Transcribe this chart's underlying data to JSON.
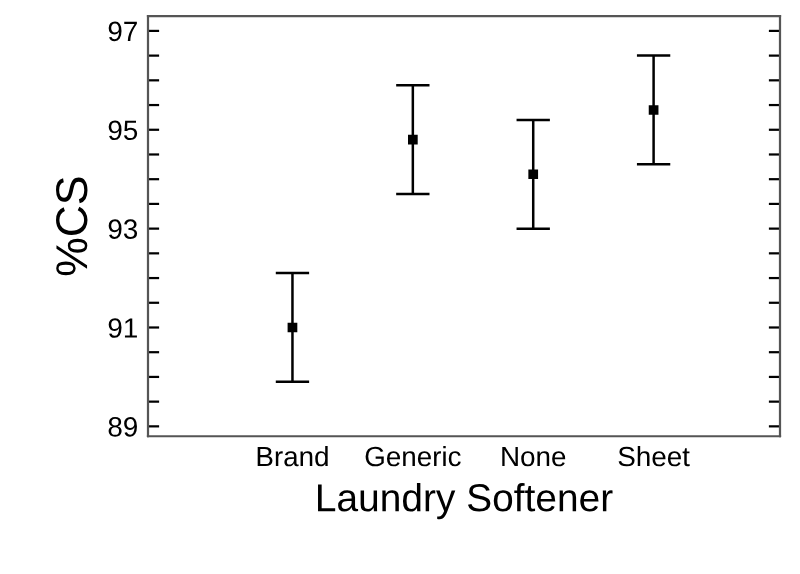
{
  "chart_data": {
    "type": "scatter",
    "xlabel": "Laundry Softener",
    "ylabel": "%CS",
    "categories": [
      "Brand",
      "Generic",
      "None",
      "Sheet"
    ],
    "values": [
      91.0,
      94.8,
      94.1,
      95.4
    ],
    "errors": [
      1.1,
      1.1,
      1.1,
      1.1
    ],
    "color": "#000000",
    "marker": "square",
    "ylim": [
      88.8,
      97.3
    ],
    "yticks": [
      89,
      {
        "value": 89.5,
        "label": null
      },
      {
        "value": 90,
        "label": null
      },
      {
        "value": 90.5,
        "label": null
      },
      91,
      {
        "value": 91.5,
        "label": null
      },
      {
        "value": 92,
        "label": null
      },
      {
        "value": 92.5,
        "label": null
      },
      93,
      {
        "value": 93.5,
        "label": null
      },
      {
        "value": 94,
        "label": null
      },
      {
        "value": 94.5,
        "label": null
      },
      95,
      {
        "value": 95.5,
        "label": null
      },
      {
        "value": 96,
        "label": null
      },
      {
        "value": 96.5,
        "label": null
      },
      97
    ],
    "grid": false
  }
}
